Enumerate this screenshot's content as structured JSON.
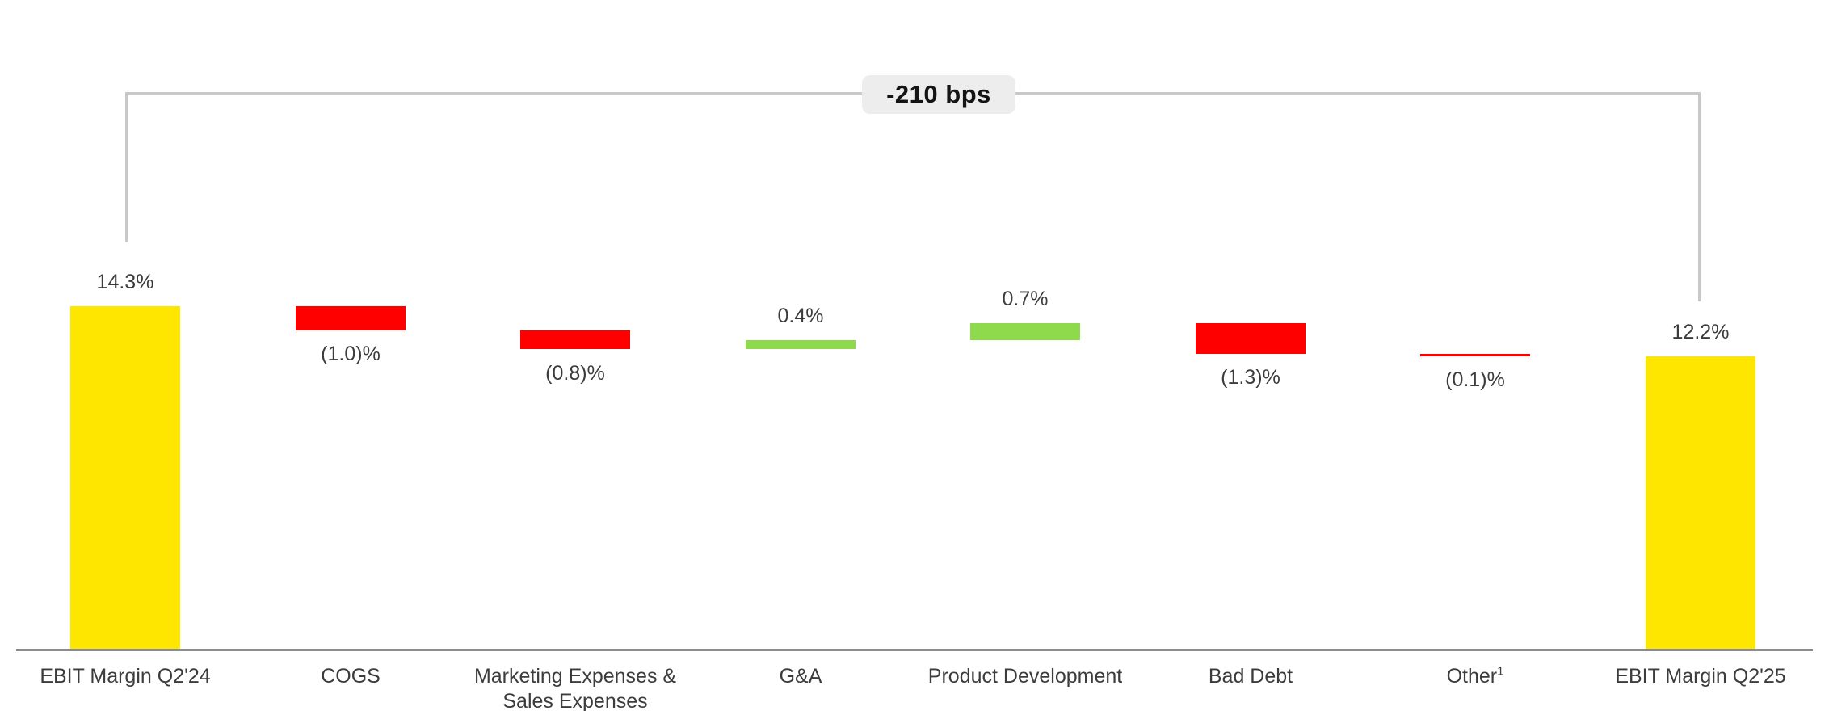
{
  "chart_data": {
    "type": "waterfall",
    "title": "",
    "bridge_total_label": "-210 bps",
    "unit": "%",
    "baseline_value": 0,
    "start_value": 14.3,
    "end_value": 12.2,
    "net_change_bps": -210,
    "gridlines": false,
    "legend": "none",
    "bars": [
      {
        "category_lines": [
          "EBIT Margin Q2'24"
        ],
        "value": 14.3,
        "display": "14.3%",
        "kind": "total",
        "label_position": "above"
      },
      {
        "category_lines": [
          "COGS"
        ],
        "value": -1.0,
        "display": "(1.0)%",
        "kind": "decrease",
        "label_position": "below"
      },
      {
        "category_lines": [
          "Marketing Expenses &",
          "Sales Expenses"
        ],
        "value": -0.8,
        "display": "(0.8)%",
        "kind": "decrease",
        "label_position": "below"
      },
      {
        "category_lines": [
          "G&A"
        ],
        "value": 0.4,
        "display": "0.4%",
        "kind": "increase",
        "label_position": "above"
      },
      {
        "category_lines": [
          "Product Development"
        ],
        "value": 0.7,
        "display": "0.7%",
        "kind": "increase",
        "label_position": "above"
      },
      {
        "category_lines": [
          "Bad Debt"
        ],
        "value": -1.3,
        "display": "(1.3)%",
        "kind": "decrease",
        "label_position": "below"
      },
      {
        "category_lines": [
          "Other"
        ],
        "category_superscript": "1",
        "value": -0.1,
        "display": "(0.1)%",
        "kind": "decrease",
        "label_position": "below"
      },
      {
        "category_lines": [
          "EBIT Margin Q2'25"
        ],
        "value": 12.2,
        "display": "12.2%",
        "kind": "total",
        "label_position": "above"
      }
    ],
    "colors": {
      "total": "#ffe600",
      "increase": "#8fd94c",
      "decrease": "#ff0000",
      "axis_line": "#8c8c8c",
      "bracket_line": "#c9c9c9",
      "badge_background": "#ededed",
      "badge_text": "#141414",
      "label_text": "#3c3c3c"
    }
  }
}
